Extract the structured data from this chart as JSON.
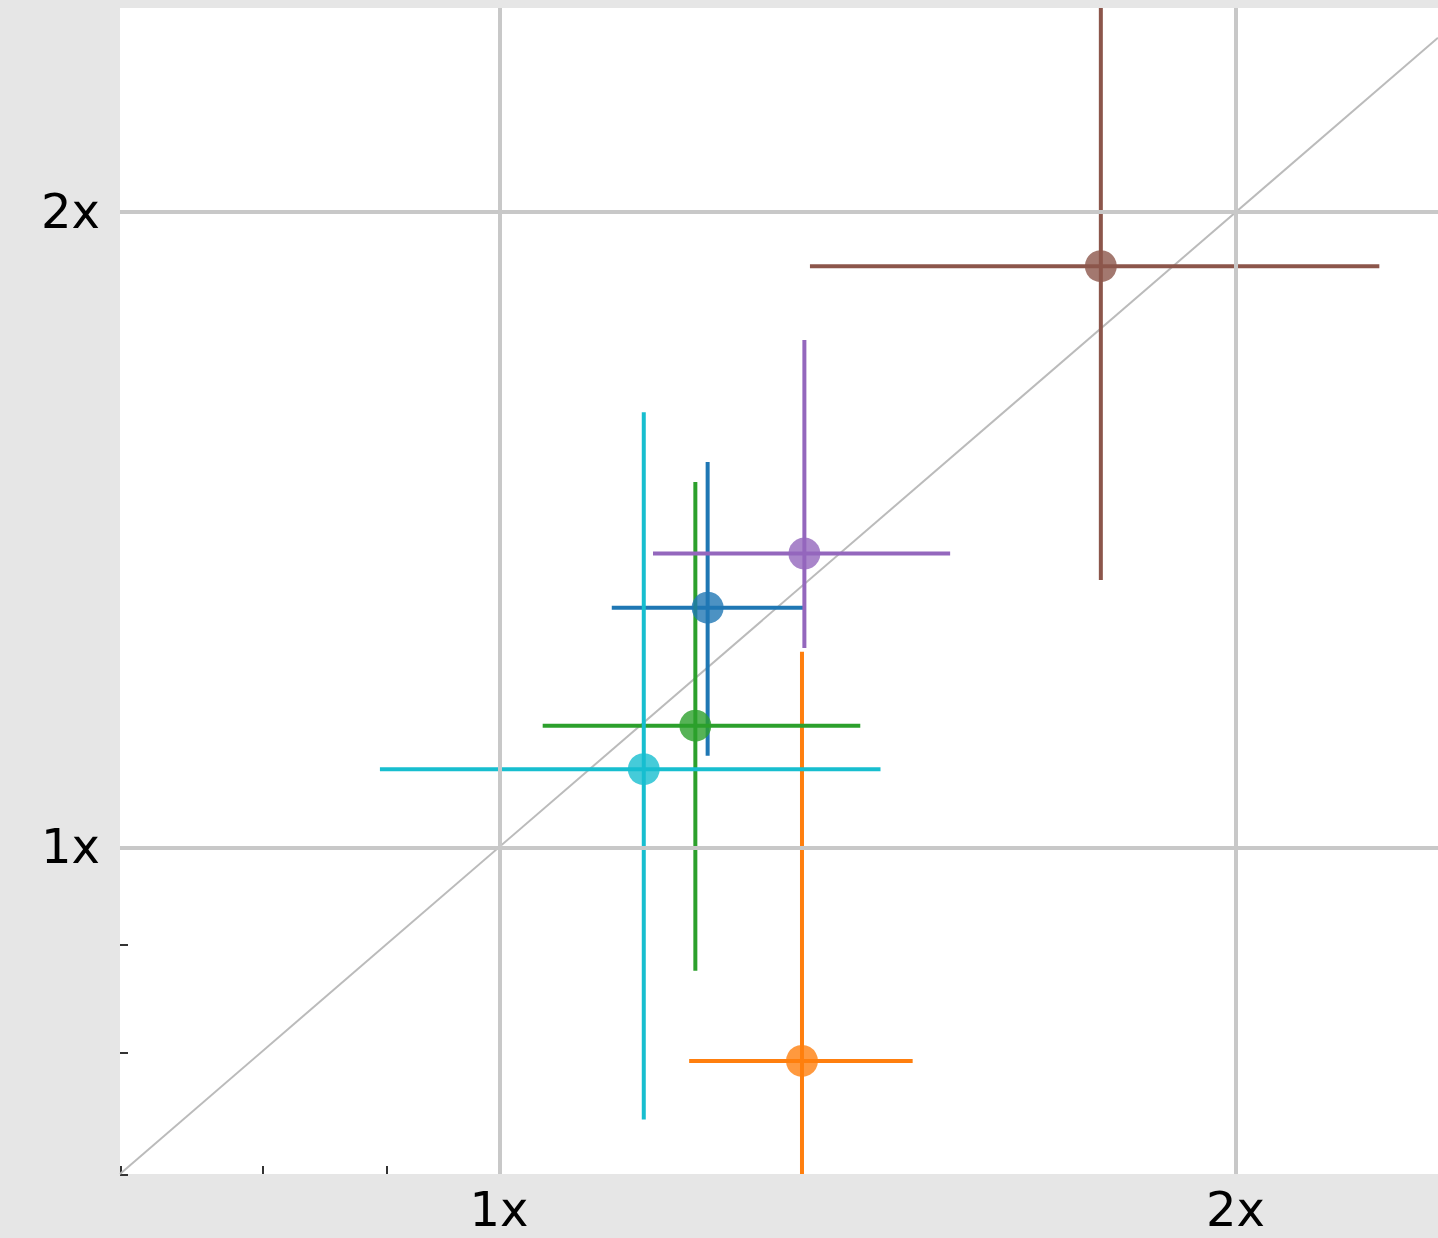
{
  "chart_data": {
    "type": "scatter",
    "log": "xy",
    "grid": true,
    "marker": "circle",
    "xlim": [
      0.7,
      2.42
    ],
    "ylim": [
      0.7,
      2.5
    ],
    "xticks": [
      {
        "value": 0.7,
        "label": null
      },
      {
        "value": 0.8,
        "label": null
      },
      {
        "value": 0.9,
        "label": null
      },
      {
        "value": 1,
        "label": "1x"
      },
      {
        "value": 2,
        "label": "2x"
      }
    ],
    "yticks": [
      {
        "value": 0.7,
        "label": null
      },
      {
        "value": 0.8,
        "label": null
      },
      {
        "value": 0.9,
        "label": null
      },
      {
        "value": 1,
        "label": "1x"
      },
      {
        "value": 2,
        "label": "2x"
      }
    ],
    "series": [
      {
        "type": "line",
        "color": "#bbbbbb",
        "x": [
          0.7,
          2.42
        ],
        "values": [
          0.7,
          2.42
        ],
        "marker": "none"
      },
      {
        "color": "#1f77b4",
        "x": [
          1.217
        ],
        "values": [
          1.299
        ],
        "xerrors": [
          [
            1.112,
            1.333
          ]
        ],
        "errors": [
          [
            1.105,
            1.523
          ]
        ]
      },
      {
        "color": "#ff7f0e",
        "x": [
          1.33
        ],
        "values": [
          0.792
        ],
        "xerrors": [
          [
            1.196,
            1.476
          ]
        ],
        "errors": [
          [
            0.7,
            1.238
          ]
        ]
      },
      {
        "color": "#2ca02c",
        "x": [
          1.203
        ],
        "values": [
          1.142
        ],
        "xerrors": [
          [
            1.042,
            1.405
          ]
        ],
        "errors": [
          [
            0.874,
            1.49
          ]
        ]
      },
      {
        "color": "#9467bd",
        "x": [
          1.333
        ],
        "values": [
          1.378
        ],
        "xerrors": [
          [
            1.156,
            1.529
          ]
        ],
        "errors": [
          [
            1.243,
            1.74
          ]
        ]
      },
      {
        "color": "#8c564b",
        "x": [
          1.762
        ],
        "values": [
          1.886
        ],
        "xerrors": [
          [
            1.34,
            2.29
          ]
        ],
        "errors": [
          [
            1.339,
            2.5
          ]
        ]
      },
      {
        "color": "#17becf",
        "x": [
          1.146
        ],
        "values": [
          1.089
        ],
        "xerrors": [
          [
            0.894,
            1.432
          ]
        ],
        "errors": [
          [
            0.743,
            1.608
          ]
        ]
      }
    ]
  }
}
